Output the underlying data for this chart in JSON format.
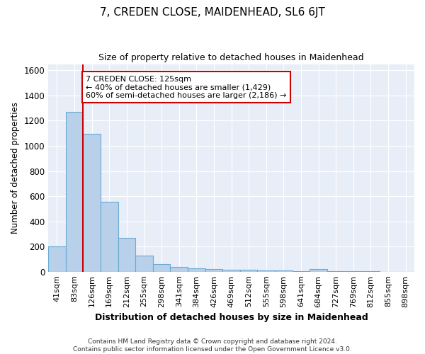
{
  "title": "7, CREDEN CLOSE, MAIDENHEAD, SL6 6JT",
  "subtitle": "Size of property relative to detached houses in Maidenhead",
  "xlabel": "Distribution of detached houses by size in Maidenhead",
  "ylabel": "Number of detached properties",
  "footer_line1": "Contains HM Land Registry data © Crown copyright and database right 2024.",
  "footer_line2": "Contains public sector information licensed under the Open Government Licence v3.0.",
  "categories": [
    "41sqm",
    "83sqm",
    "126sqm",
    "169sqm",
    "212sqm",
    "255sqm",
    "298sqm",
    "341sqm",
    "384sqm",
    "426sqm",
    "469sqm",
    "512sqm",
    "555sqm",
    "598sqm",
    "641sqm",
    "684sqm",
    "727sqm",
    "769sqm",
    "812sqm",
    "855sqm",
    "898sqm"
  ],
  "values": [
    200,
    1270,
    1095,
    555,
    270,
    125,
    60,
    35,
    25,
    20,
    15,
    15,
    10,
    10,
    5,
    20,
    3,
    2,
    2,
    1,
    1
  ],
  "bar_color": "#b8d0ea",
  "bar_edge_color": "#6aaad4",
  "background_color": "#e8eef8",
  "grid_color": "#ffffff",
  "property_line_index": 2,
  "property_line_color": "#cc0000",
  "annotation_text": "7 CREDEN CLOSE: 125sqm\n← 40% of detached houses are smaller (1,429)\n60% of semi-detached houses are larger (2,186) →",
  "annotation_box_color": "#cc0000",
  "ylim": [
    0,
    1650
  ],
  "yticks": [
    0,
    200,
    400,
    600,
    800,
    1000,
    1200,
    1400,
    1600
  ]
}
